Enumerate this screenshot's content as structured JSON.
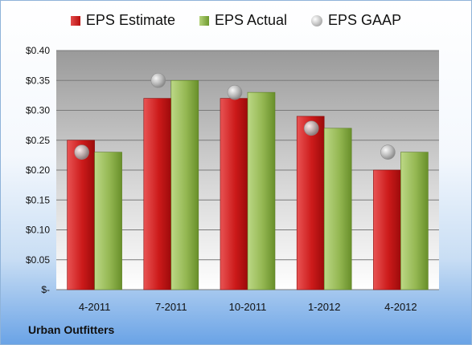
{
  "chart_data": {
    "type": "bar",
    "categories": [
      "4-2011",
      "7-2011",
      "10-2011",
      "1-2012",
      "4-2012"
    ],
    "series": [
      {
        "name": "EPS Estimate",
        "values": [
          0.25,
          0.32,
          0.32,
          0.29,
          0.2
        ],
        "color": "#c0181c"
      },
      {
        "name": "EPS Actual",
        "values": [
          0.23,
          0.35,
          0.33,
          0.27,
          0.23
        ],
        "color": "#8db046"
      },
      {
        "name": "EPS GAAP",
        "values": [
          0.23,
          0.35,
          0.33,
          0.27,
          0.23
        ],
        "color": "#b3b3b3",
        "marker": "circle"
      }
    ],
    "ylim": [
      0,
      0.4
    ],
    "yticks": [
      "$0.40",
      "$0.35",
      "$0.30",
      "$0.25",
      "$0.20",
      "$0.15",
      "$0.10",
      "$0.05",
      "$-"
    ],
    "ytick_values": [
      0.4,
      0.35,
      0.3,
      0.25,
      0.2,
      0.15,
      0.1,
      0.05,
      0
    ],
    "grid": true,
    "legend_position": "top"
  },
  "footer": {
    "company": "Urban Outfitters"
  }
}
